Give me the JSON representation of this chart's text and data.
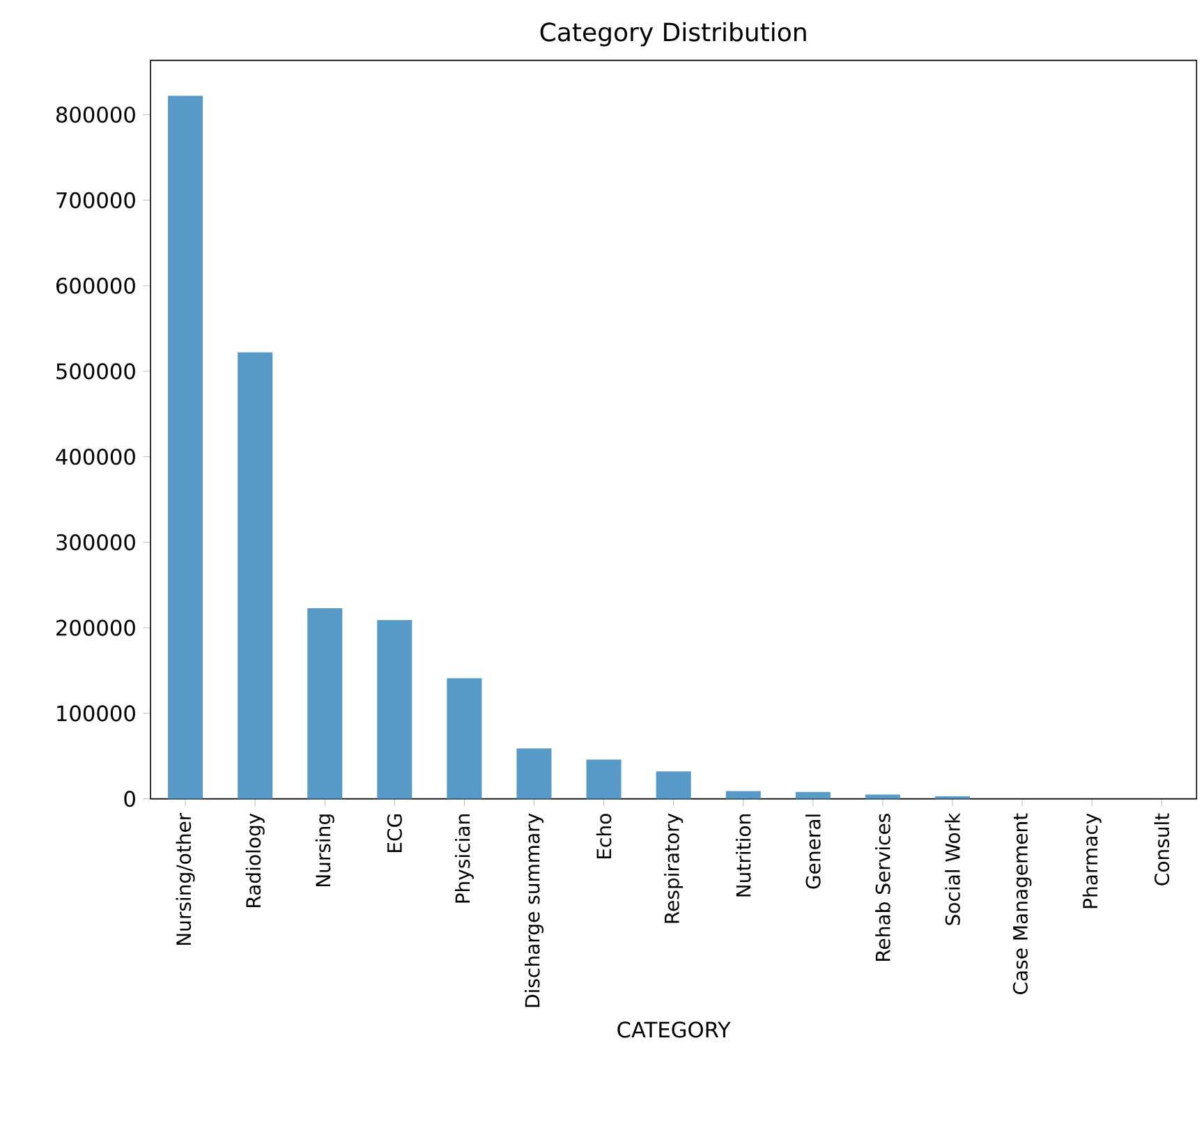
{
  "chart_data": {
    "type": "bar",
    "title": "Category Distribution",
    "xlabel": "CATEGORY",
    "categories": [
      "Nursing/other",
      "Radiology",
      "Nursing",
      "ECG",
      "Physician",
      "Discharge summary",
      "Echo",
      "Respiratory",
      "Nutrition",
      "General",
      "Rehab Services",
      "Social Work",
      "Case Management",
      "Pharmacy",
      "Consult"
    ],
    "values": [
      822000,
      522000,
      223000,
      209000,
      141000,
      59000,
      46000,
      32000,
      9000,
      8000,
      5000,
      3000,
      0,
      0,
      0
    ],
    "color": "#5799c7",
    "ylim": [
      0,
      863500
    ],
    "yticks": [
      0,
      100000,
      200000,
      300000,
      400000,
      500000,
      600000,
      700000,
      800000
    ],
    "grid": false
  }
}
